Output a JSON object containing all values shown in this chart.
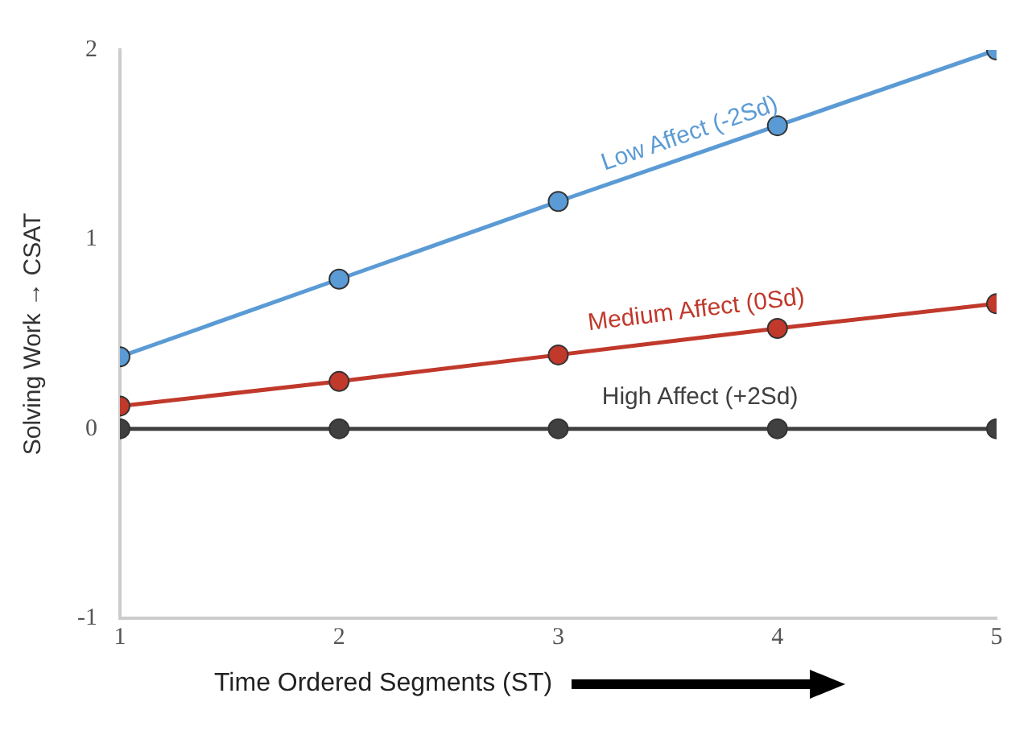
{
  "chart_data": {
    "type": "line",
    "xlabel": "Time Ordered Segments (ST)",
    "ylabel": "Solving Work → CSAT",
    "x": [
      1,
      2,
      3,
      4,
      5
    ],
    "xlim": [
      1,
      5
    ],
    "xticks": [
      1,
      2,
      3,
      4,
      5
    ],
    "ylim": [
      -1,
      2
    ],
    "yticks": [
      -1,
      0,
      1,
      2
    ],
    "grid": false,
    "legend": false,
    "marker": "circle",
    "line_style": "solid",
    "series": [
      {
        "name": "Low Affect (-2Sd)",
        "color": "#5b9bd5",
        "values": [
          0.38,
          0.79,
          1.2,
          1.6,
          2.0
        ]
      },
      {
        "name": "Medium Affect (0Sd)",
        "color": "#c0392b",
        "values": [
          0.12,
          0.25,
          0.39,
          0.53,
          0.66
        ]
      },
      {
        "name": "High Affect (+2Sd)",
        "color": "#404040",
        "values": [
          0,
          0,
          0,
          0,
          0
        ]
      }
    ]
  }
}
